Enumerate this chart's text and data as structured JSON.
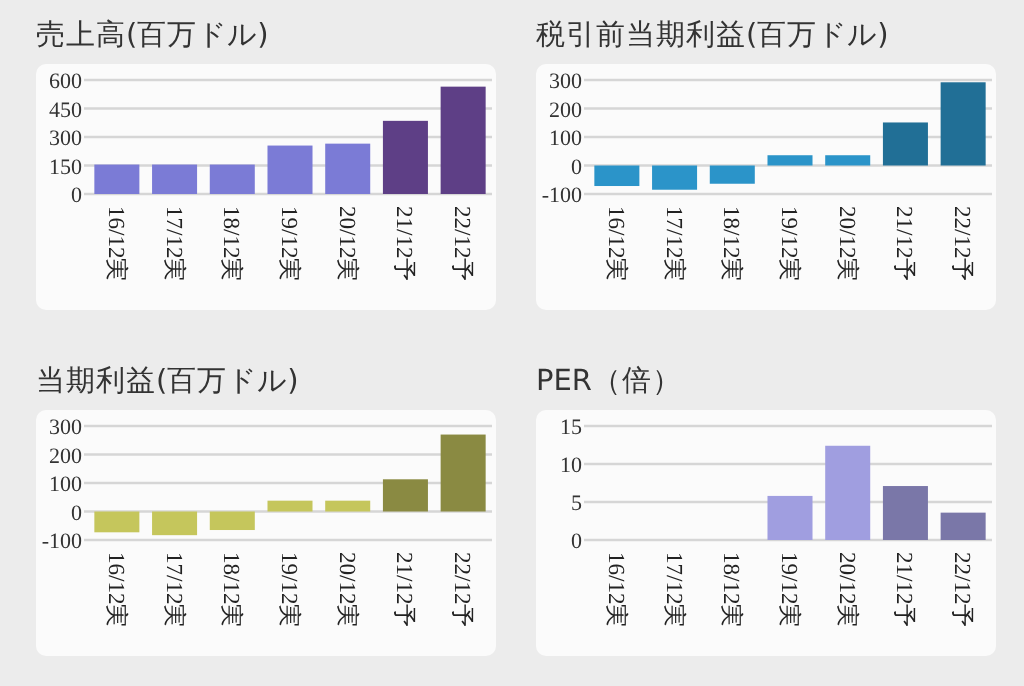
{
  "chart_data": [
    {
      "type": "bar",
      "title": "売上高(百万ドル)",
      "categories": [
        "16/12実",
        "17/12実",
        "18/12実",
        "19/12実",
        "20/12実",
        "21/12予",
        "22/12予"
      ],
      "values": [
        155,
        155,
        155,
        255,
        265,
        385,
        565
      ],
      "colors": [
        "#7b7bd6",
        "#7b7bd6",
        "#7b7bd6",
        "#7b7bd6",
        "#7b7bd6",
        "#5e3f86",
        "#5e3f86"
      ],
      "ylim": [
        0,
        600
      ],
      "yticks": [
        0,
        150,
        300,
        450,
        600
      ],
      "grid": "y"
    },
    {
      "type": "bar",
      "title": "税引前当期利益(百万ドル)",
      "categories": [
        "16/12実",
        "17/12実",
        "18/12実",
        "19/12実",
        "20/12実",
        "21/12予",
        "22/12予"
      ],
      "values": [
        -72,
        -85,
        -64,
        36,
        36,
        151,
        292
      ],
      "colors": [
        "#2b94c9",
        "#2b94c9",
        "#2b94c9",
        "#2b94c9",
        "#2b94c9",
        "#216f96",
        "#216f96"
      ],
      "ylim": [
        -100,
        300
      ],
      "yticks": [
        -100,
        0,
        100,
        200,
        300
      ],
      "grid": "y"
    },
    {
      "type": "bar",
      "title": "当期利益(百万ドル)",
      "categories": [
        "16/12実",
        "17/12実",
        "18/12実",
        "19/12実",
        "20/12実",
        "21/12予",
        "22/12予"
      ],
      "values": [
        -73,
        -83,
        -65,
        38,
        38,
        113,
        270
      ],
      "colors": [
        "#c5c65c",
        "#c5c65c",
        "#c5c65c",
        "#c5c65c",
        "#c5c65c",
        "#8a8a42",
        "#8a8a42"
      ],
      "ylim": [
        -100,
        300
      ],
      "yticks": [
        -100,
        0,
        100,
        200,
        300
      ],
      "grid": "y"
    },
    {
      "type": "bar",
      "title": "PER（倍）",
      "categories": [
        "16/12実",
        "17/12実",
        "18/12実",
        "19/12実",
        "20/12実",
        "21/12予",
        "22/12予"
      ],
      "values": [
        null,
        null,
        null,
        5.8,
        12.4,
        7.1,
        3.6
      ],
      "colors": [
        null,
        null,
        null,
        "#a09ee0",
        "#a09ee0",
        "#7a77a8",
        "#7a77a8"
      ],
      "ylim": [
        0,
        15
      ],
      "yticks": [
        0,
        5,
        10,
        15
      ],
      "grid": "y"
    }
  ]
}
